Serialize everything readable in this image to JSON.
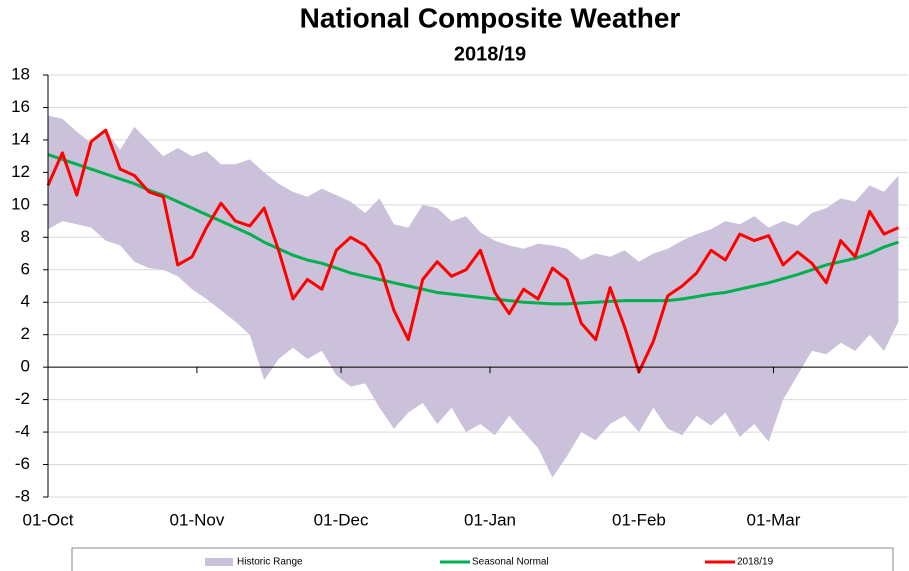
{
  "chart_data": {
    "type": "line",
    "title": "National Composite Weather",
    "subtitle": "2018/19",
    "x": [
      0,
      3,
      6,
      9,
      12,
      15,
      18,
      21,
      24,
      27,
      30,
      33,
      36,
      39,
      42,
      45,
      48,
      51,
      54,
      57,
      60,
      63,
      66,
      69,
      72,
      75,
      78,
      81,
      84,
      87,
      90,
      93,
      96,
      99,
      102,
      105,
      108,
      111,
      114,
      117,
      120,
      123,
      126,
      129,
      132,
      135,
      138,
      141,
      144,
      147,
      150,
      153,
      156,
      159,
      162,
      165,
      168,
      171,
      174,
      177
    ],
    "xlim": [
      0,
      179
    ],
    "xticks": [
      {
        "value": 0,
        "label": "01-Oct"
      },
      {
        "value": 31,
        "label": "01-Nov"
      },
      {
        "value": 61,
        "label": "01-Dec"
      },
      {
        "value": 92,
        "label": "01-Jan"
      },
      {
        "value": 123,
        "label": "01-Feb"
      },
      {
        "value": 151,
        "label": "01-Mar"
      }
    ],
    "ylim": [
      -8,
      18
    ],
    "yticks": [
      -8,
      -6,
      -4,
      -2,
      0,
      2,
      4,
      6,
      8,
      10,
      12,
      14,
      16,
      18
    ],
    "grid": true,
    "legend": "bottom",
    "series": [
      {
        "name": "Historic Range",
        "type": "range",
        "color": "#ccc1da",
        "lower": [
          8.5,
          9.0,
          8.8,
          8.6,
          7.8,
          7.5,
          6.5,
          6.1,
          6.0,
          5.6,
          4.8,
          4.2,
          3.5,
          2.8,
          2.0,
          -0.8,
          0.5,
          1.2,
          0.5,
          1.0,
          -0.5,
          -1.2,
          -1.0,
          -2.5,
          -3.8,
          -2.8,
          -2.2,
          -3.5,
          -2.5,
          -4.0,
          -3.5,
          -4.2,
          -3.0,
          -4.0,
          -5.0,
          -6.8,
          -5.5,
          -4.0,
          -4.5,
          -3.5,
          -3.0,
          -4.0,
          -2.5,
          -3.8,
          -4.2,
          -3.0,
          -3.6,
          -2.8,
          -4.3,
          -3.5,
          -4.6,
          -2.0,
          -0.5,
          1.0,
          0.8,
          1.5,
          1.0,
          2.0,
          1.0,
          2.8
        ],
        "upper": [
          15.5,
          15.3,
          14.5,
          13.8,
          14.6,
          13.4,
          14.8,
          13.9,
          13.0,
          13.5,
          13.0,
          13.3,
          12.5,
          12.5,
          12.8,
          12.0,
          11.3,
          10.8,
          10.5,
          11.0,
          10.6,
          10.2,
          9.5,
          10.4,
          8.8,
          8.6,
          10.0,
          9.8,
          9.0,
          9.3,
          8.3,
          7.8,
          7.5,
          7.3,
          7.6,
          7.5,
          7.3,
          6.6,
          7.0,
          6.8,
          7.2,
          6.5,
          7.0,
          7.3,
          7.8,
          8.2,
          8.5,
          9.0,
          8.8,
          9.3,
          8.6,
          9.0,
          8.7,
          9.5,
          9.8,
          10.4,
          10.2,
          11.2,
          10.8,
          11.8
        ]
      },
      {
        "name": "Seasonal Normal",
        "color": "#00b050",
        "values": [
          13.1,
          12.8,
          12.5,
          12.2,
          11.9,
          11.6,
          11.3,
          10.9,
          10.6,
          10.2,
          9.8,
          9.4,
          9.0,
          8.6,
          8.2,
          7.7,
          7.3,
          6.9,
          6.6,
          6.4,
          6.1,
          5.8,
          5.6,
          5.4,
          5.2,
          5.0,
          4.8,
          4.6,
          4.5,
          4.4,
          4.3,
          4.2,
          4.1,
          4.0,
          3.95,
          3.9,
          3.9,
          3.95,
          4.0,
          4.05,
          4.1,
          4.1,
          4.1,
          4.1,
          4.2,
          4.35,
          4.5,
          4.6,
          4.8,
          5.0,
          5.2,
          5.45,
          5.7,
          6.0,
          6.3,
          6.5,
          6.7,
          7.0,
          7.4,
          7.7
        ]
      },
      {
        "name": "2018/19",
        "color": "#ff0000",
        "values": [
          11.2,
          13.2,
          10.6,
          13.9,
          14.6,
          12.2,
          11.8,
          10.8,
          10.5,
          6.3,
          6.8,
          8.6,
          10.1,
          9.0,
          8.7,
          9.8,
          7.2,
          4.2,
          5.4,
          4.8,
          7.2,
          8.0,
          7.5,
          6.3,
          3.5,
          1.7,
          5.4,
          6.5,
          5.6,
          6.0,
          7.2,
          4.6,
          3.3,
          4.8,
          4.2,
          6.1,
          5.4,
          2.7,
          1.7,
          4.9,
          2.5,
          -0.3,
          1.6,
          4.4,
          5.0,
          5.8,
          7.2,
          6.6,
          8.2,
          7.8,
          8.1,
          6.3,
          7.1,
          6.4,
          5.2,
          7.8,
          6.8,
          9.6,
          8.2,
          8.6
        ]
      }
    ]
  }
}
